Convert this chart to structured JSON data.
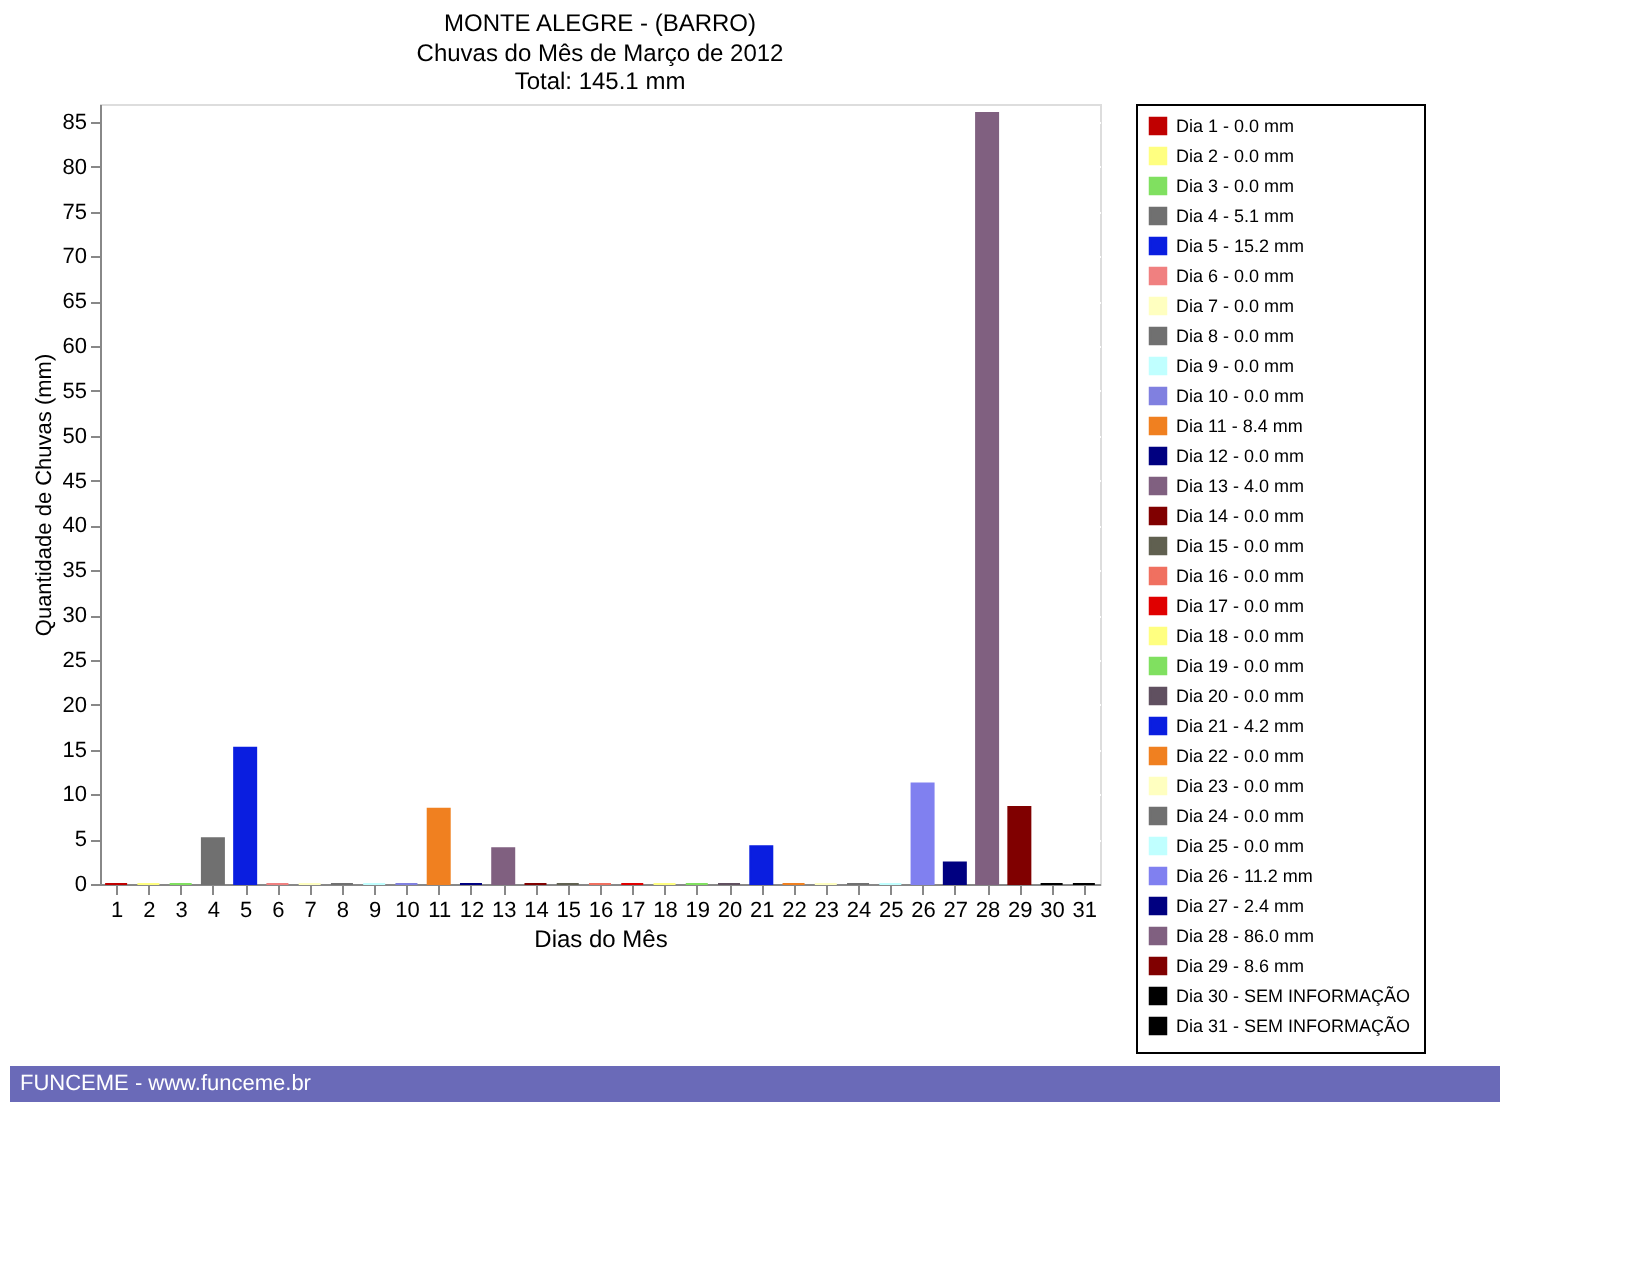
{
  "chart_data": {
    "type": "bar",
    "title": "MONTE ALEGRE - (BARRO)",
    "subtitle": "Chuvas do Mês de Março de 2012",
    "xlabel": "Dias do Mês",
    "ylabel": "Quantidade de Chuvas (mm)",
    "annotations": [
      "Total: 145.1 mm",
      "FUNCEME - www.funceme.br"
    ],
    "xlim": [
      0.5,
      31.5
    ],
    "xticks": [
      1,
      2,
      3,
      4,
      5,
      6,
      7,
      8,
      9,
      10,
      11,
      12,
      13,
      14,
      15,
      16,
      17,
      18,
      19,
      20,
      21,
      22,
      23,
      24,
      25,
      26,
      27,
      28,
      29,
      30,
      31
    ],
    "ylim": [
      0,
      87
    ],
    "yticks": [
      0,
      5,
      10,
      15,
      20,
      25,
      30,
      35,
      40,
      45,
      50,
      55,
      60,
      65,
      70,
      75,
      80,
      85
    ],
    "grid": "y",
    "legend": "right",
    "series": [
      {
        "name": "Dia 1 - 0.0 mm",
        "color": "#c00000",
        "x": [
          1
        ],
        "values": [
          0.0
        ]
      },
      {
        "name": "Dia 2 - 0.0 mm",
        "color": "#ffff80",
        "x": [
          2
        ],
        "values": [
          0.0
        ]
      },
      {
        "name": "Dia 3 - 0.0 mm",
        "color": "#80e060",
        "x": [
          3
        ],
        "values": [
          0.0
        ]
      },
      {
        "name": "Dia 4 - 5.1 mm",
        "color": "#707070",
        "x": [
          4
        ],
        "values": [
          5.1
        ]
      },
      {
        "name": "Dia 5 - 15.2 mm",
        "color": "#0a1ee0",
        "x": [
          5
        ],
        "values": [
          15.2
        ]
      },
      {
        "name": "Dia 6 - 0.0 mm",
        "color": "#f08080",
        "x": [
          6
        ],
        "values": [
          0.0
        ]
      },
      {
        "name": "Dia 7 - 0.0 mm",
        "color": "#ffffc0",
        "x": [
          7
        ],
        "values": [
          0.0
        ]
      },
      {
        "name": "Dia 8 - 0.0 mm",
        "color": "#707070",
        "x": [
          8
        ],
        "values": [
          0.0
        ]
      },
      {
        "name": "Dia 9 - 0.0 mm",
        "color": "#c0ffff",
        "x": [
          9
        ],
        "values": [
          0.0
        ]
      },
      {
        "name": "Dia 10 - 0.0 mm",
        "color": "#8080e0",
        "x": [
          10
        ],
        "values": [
          0.0
        ]
      },
      {
        "name": "Dia 11 - 8.4 mm",
        "color": "#f08020",
        "x": [
          11
        ],
        "values": [
          8.4
        ]
      },
      {
        "name": "Dia 12 - 0.0 mm",
        "color": "#000080",
        "x": [
          12
        ],
        "values": [
          0.0
        ]
      },
      {
        "name": "Dia 13 - 4.0 mm",
        "color": "#806080",
        "x": [
          13
        ],
        "values": [
          4.0
        ]
      },
      {
        "name": "Dia 14 - 0.0 mm",
        "color": "#800000",
        "x": [
          14
        ],
        "values": [
          0.0
        ]
      },
      {
        "name": "Dia 15 - 0.0 mm",
        "color": "#606050",
        "x": [
          15
        ],
        "values": [
          0.0
        ]
      },
      {
        "name": "Dia 16 - 0.0 mm",
        "color": "#f07060",
        "x": [
          16
        ],
        "values": [
          0.0
        ]
      },
      {
        "name": "Dia 17 - 0.0 mm",
        "color": "#e00000",
        "x": [
          17
        ],
        "values": [
          0.0
        ]
      },
      {
        "name": "Dia 18 - 0.0 mm",
        "color": "#ffff80",
        "x": [
          18
        ],
        "values": [
          0.0
        ]
      },
      {
        "name": "Dia 19 - 0.0 mm",
        "color": "#80e060",
        "x": [
          19
        ],
        "values": [
          0.0
        ]
      },
      {
        "name": "Dia 20 - 0.0 mm",
        "color": "#605060",
        "x": [
          20
        ],
        "values": [
          0.0
        ]
      },
      {
        "name": "Dia 21 - 4.2 mm",
        "color": "#0a1ee0",
        "x": [
          21
        ],
        "values": [
          4.2
        ]
      },
      {
        "name": "Dia 22 - 0.0 mm",
        "color": "#f08020",
        "x": [
          22
        ],
        "values": [
          0.0
        ]
      },
      {
        "name": "Dia 23 - 0.0 mm",
        "color": "#ffffc0",
        "x": [
          23
        ],
        "values": [
          0.0
        ]
      },
      {
        "name": "Dia 24 - 0.0 mm",
        "color": "#707070",
        "x": [
          24
        ],
        "values": [
          0.0
        ]
      },
      {
        "name": "Dia 25 - 0.0 mm",
        "color": "#c0ffff",
        "x": [
          25
        ],
        "values": [
          0.0
        ]
      },
      {
        "name": "Dia 26 - 11.2 mm",
        "color": "#8080f0",
        "x": [
          26
        ],
        "values": [
          11.2
        ]
      },
      {
        "name": "Dia 27 - 2.4 mm",
        "color": "#000080",
        "x": [
          27
        ],
        "values": [
          2.4
        ]
      },
      {
        "name": "Dia 28 - 86.0 mm",
        "color": "#806080",
        "x": [
          28
        ],
        "values": [
          86.0
        ]
      },
      {
        "name": "Dia 29 - 8.6 mm",
        "color": "#800000",
        "x": [
          29
        ],
        "values": [
          8.6
        ]
      },
      {
        "name": "Dia 30 - SEM INFORMAÇÃO",
        "color": "#000000",
        "x": [
          30
        ],
        "values": [
          0.0
        ]
      },
      {
        "name": "Dia 31 - SEM INFORMAÇÃO",
        "color": "#000000",
        "x": [
          31
        ],
        "values": [
          0.0
        ]
      }
    ]
  }
}
